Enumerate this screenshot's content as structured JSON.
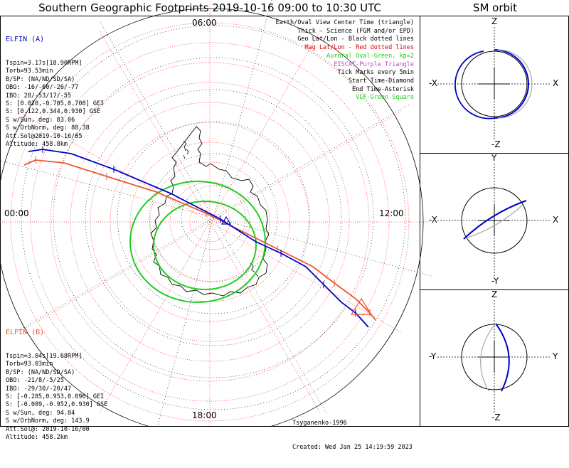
{
  "header": {
    "title": "Southern Geographic Footprints 2019-10-16 09:00 to 10:30 UTC",
    "sm_title": "SM orbit"
  },
  "hour_labels": {
    "top": "06:00",
    "left": "00:00",
    "right": "12:00",
    "bottom": "18:00"
  },
  "elfin_a": {
    "name": "ELFIN (A)",
    "color": "#0000cc",
    "lines": [
      "Tspin=3.17s[18.90RPM]",
      "Torb=93.53min",
      "B/SP: (NA/ND/SD/SA)",
      "OBO: -16/-60/-26/-77",
      "IBO: 28/-53/17/-55",
      "S: [0.020,-0.705,0.708] GEI",
      "S: [0.122,0.344,0.930] GSE",
      "S w/Sun, deg: 83.06",
      "S w/OrbNorm, deg: 88.38",
      "Att.Sol@2019-10-16/05",
      "Altitude: 458.8km"
    ]
  },
  "elfin_b": {
    "name": "ELFIN (B)",
    "color": "#ee5533",
    "lines": [
      "Tspin=3.04s[19.68RPM]",
      "Torb=93.03min",
      "B/SP: (NA/ND/SD/SA)",
      "OBO: -21/8/-5/25",
      "IBO: -29/30/-20/47",
      "S: [-0.285,0.953,0.096] GEI",
      "S: [-0.089,-0.952,0.930] GSE",
      "S w/Sun, deg: 94.84",
      "S w/OrbNorm, deg: 143.9",
      "Att.Sol@: 2019-10-16/00",
      "Altitude: 458.2km"
    ]
  },
  "legend": [
    {
      "text": "Earth/Oval View Center Time (triangle)",
      "color": "#000000"
    },
    {
      "text": "Thick - Science (FGM and/or EPD)",
      "color": "#000000"
    },
    {
      "text": "Geo Lat/Lon - Black dotted lines",
      "color": "#000000"
    },
    {
      "text": "Mag Lat/Lon - Red dotted lines",
      "color": "#dd0000"
    },
    {
      "text": "Auroral Oval-Green, kp=2",
      "color": "#22cc22"
    },
    {
      "text": "EISCAT-Purple Triangle",
      "color": "#cc44cc"
    },
    {
      "text": "Tick Marks every 5min",
      "color": "#000000"
    },
    {
      "text": "Start Time-Diamond",
      "color": "#000000"
    },
    {
      "text": "End Time-Asterisk",
      "color": "#000000"
    },
    {
      "text": "VLF-Green Square",
      "color": "#22cc22"
    }
  ],
  "footer": {
    "model": "Tsyganenko-1996",
    "created": "Created: Wed Jan 25 14:19:59 2023"
  },
  "sm_panels": [
    {
      "top": "Z",
      "bottom": "-Z",
      "left": "-X",
      "right": "X"
    },
    {
      "top": "Y",
      "bottom": "-Y",
      "left": "-X",
      "right": "X"
    },
    {
      "top": "Z",
      "bottom": "-Z",
      "left": "-Y",
      "right": "Y"
    }
  ],
  "colors": {
    "blue": "#0000cc",
    "red": "#ee5533",
    "green": "#22cc22",
    "grid_red": "#ee3333",
    "gray": "#aaaaaa"
  }
}
